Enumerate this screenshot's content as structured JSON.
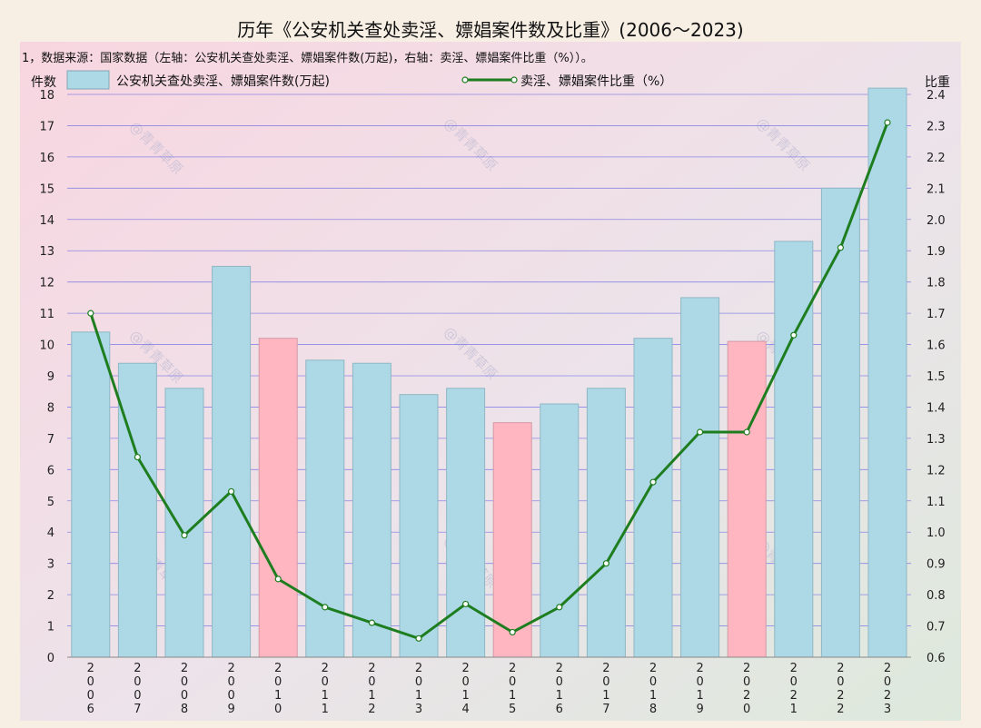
{
  "chart_data": {
    "type": "bar",
    "title": "历年《公安机关查处卖淫、嫖娼案件数及比重》(2006～2023)",
    "subtitle": "1，数据来源：国家数据（左轴：公安机关查处卖淫、嫖娼案件数(万起)，右轴：卖淫、嫖娼案件比重（%））。",
    "ylabel": "件数",
    "y2label": "比重",
    "ylim": [
      0,
      18
    ],
    "y2lim": [
      0.6,
      2.4
    ],
    "yticks": [
      "0",
      "1",
      "2",
      "3",
      "4",
      "5",
      "6",
      "7",
      "8",
      "9",
      "10",
      "11",
      "12",
      "13",
      "14",
      "15",
      "16",
      "17",
      "18"
    ],
    "y2ticks": [
      "0.6",
      "0.7",
      "0.8",
      "0.9",
      "1.0",
      "1.1",
      "1.2",
      "1.3",
      "1.4",
      "1.5",
      "1.6",
      "1.7",
      "1.8",
      "1.9",
      "2.0",
      "2.1",
      "2.2",
      "2.3",
      "2.4"
    ],
    "categories": [
      "2006",
      "2007",
      "2008",
      "2009",
      "2010",
      "2011",
      "2012",
      "2013",
      "2014",
      "2015",
      "2016",
      "2017",
      "2018",
      "2019",
      "2020",
      "2021",
      "2022",
      "2023"
    ],
    "grid": true,
    "legend_position": "top",
    "watermark": "@青青草原",
    "series": [
      {
        "name": "公安机关查处卖淫、嫖娼案件数(万起)",
        "type": "bar",
        "axis": "left",
        "color": "#add8e6",
        "highlight_color": "#ffb6c1",
        "highlighted": [
          "2010",
          "2015",
          "2020"
        ],
        "values": [
          10.4,
          9.4,
          8.6,
          12.5,
          10.2,
          9.5,
          9.4,
          8.4,
          8.6,
          7.5,
          8.1,
          8.6,
          10.2,
          11.5,
          10.1,
          13.3,
          15.0,
          18.2
        ]
      },
      {
        "name": "卖淫、嫖娼案件比重（%）",
        "type": "line",
        "axis": "right",
        "color": "#1e7d1e",
        "values": [
          1.7,
          1.24,
          0.99,
          1.13,
          0.85,
          0.76,
          0.71,
          0.66,
          0.77,
          0.68,
          0.76,
          0.9,
          1.16,
          1.32,
          1.32,
          1.63,
          1.91,
          2.31
        ]
      }
    ]
  }
}
